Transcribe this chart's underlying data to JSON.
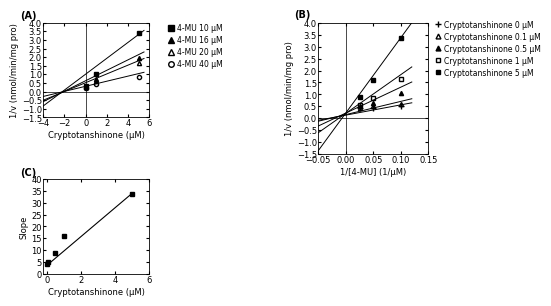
{
  "panel_A": {
    "title": "(A)",
    "xlabel": "Cryptotanshinone (μM)",
    "ylabel": "1/v (nmol/min/mg pro)",
    "xlim": [
      -4,
      6
    ],
    "ylim": [
      -1.5,
      4
    ],
    "xticks": [
      -4,
      -2,
      0,
      2,
      4,
      6
    ],
    "yticks": [
      -1.5,
      -1,
      -0.5,
      0,
      0.5,
      1,
      1.5,
      2,
      2.5,
      3,
      3.5,
      4
    ],
    "series": [
      {
        "label": "4-MU 10 μM",
        "marker": "s",
        "fillstyle": "full",
        "color": "black",
        "data_x": [
          0,
          1,
          5
        ],
        "data_y": [
          0.35,
          1.0,
          3.4
        ],
        "line_x": [
          -4,
          5.5
        ],
        "line_y": [
          -0.83,
          3.55
        ]
      },
      {
        "label": "4-MU 16 μM",
        "marker": "^",
        "fillstyle": "full",
        "color": "black",
        "data_x": [
          0,
          1,
          5
        ],
        "data_y": [
          0.28,
          0.75,
          1.95
        ],
        "line_x": [
          -4,
          5.5
        ],
        "line_y": [
          -0.58,
          2.3
        ]
      },
      {
        "label": "4-MU 20 μM",
        "marker": "^",
        "fillstyle": "none",
        "color": "black",
        "data_x": [
          0,
          1,
          5
        ],
        "data_y": [
          0.25,
          0.6,
          1.65
        ],
        "line_x": [
          -4,
          5.5
        ],
        "line_y": [
          -0.5,
          1.92
        ]
      },
      {
        "label": "4-MU 40 μM",
        "marker": "o",
        "fillstyle": "none",
        "color": "black",
        "data_x": [
          0,
          1,
          5
        ],
        "data_y": [
          0.22,
          0.42,
          0.87
        ],
        "line_x": [
          -4,
          5.5
        ],
        "line_y": [
          -0.28,
          1.12
        ]
      }
    ]
  },
  "panel_B": {
    "title": "(B)",
    "xlabel": "1/[4-MU] (1/μM)",
    "ylabel": "1/v (nmol/min/mg pro)",
    "xlim": [
      -0.05,
      0.15
    ],
    "ylim": [
      -1.5,
      4
    ],
    "xticks": [
      -0.05,
      0,
      0.05,
      0.1,
      0.15
    ],
    "yticks": [
      -1.5,
      -1,
      -0.5,
      0,
      0.5,
      1,
      1.5,
      2,
      2.5,
      3,
      3.5,
      4
    ],
    "series": [
      {
        "label": "Cryptotanshinone 0 μM",
        "marker": "+",
        "fillstyle": "full",
        "color": "black",
        "data_x": [
          0.025,
          0.05,
          0.1
        ],
        "data_y": [
          0.42,
          0.45,
          0.52
        ],
        "line_x": [
          -0.05,
          0.12
        ],
        "line_y": [
          -0.08,
          0.65
        ]
      },
      {
        "label": "Cryptotanshinone 0.1 μM",
        "marker": "^",
        "fillstyle": "none",
        "color": "black",
        "data_x": [
          0.025,
          0.05,
          0.1
        ],
        "data_y": [
          0.45,
          0.52,
          0.6
        ],
        "line_x": [
          -0.05,
          0.12
        ],
        "line_y": [
          -0.12,
          0.82
        ]
      },
      {
        "label": "Cryptotanshinone 0.5 μM",
        "marker": "^",
        "fillstyle": "full",
        "color": "black",
        "data_x": [
          0.025,
          0.05,
          0.1
        ],
        "data_y": [
          0.5,
          0.65,
          1.05
        ],
        "line_x": [
          -0.05,
          0.12
        ],
        "line_y": [
          -0.32,
          1.52
        ]
      },
      {
        "label": "Cryptotanshinone 1 μM",
        "marker": "s",
        "fillstyle": "none",
        "color": "black",
        "data_x": [
          0.025,
          0.05,
          0.1
        ],
        "data_y": [
          0.55,
          0.85,
          1.65
        ],
        "line_x": [
          -0.05,
          0.12
        ],
        "line_y": [
          -0.6,
          2.15
        ]
      },
      {
        "label": "Cryptotanshinone 5 μM",
        "marker": "s",
        "fillstyle": "full",
        "color": "black",
        "data_x": [
          0.025,
          0.05,
          0.1
        ],
        "data_y": [
          0.9,
          1.6,
          3.35
        ],
        "line_x": [
          -0.05,
          0.12
        ],
        "line_y": [
          -1.35,
          4.0
        ]
      }
    ]
  },
  "panel_C": {
    "title": "(C)",
    "xlabel": "Cryptotanshinone (μM)",
    "ylabel": "Slope",
    "xlim": [
      -0.2,
      6
    ],
    "ylim": [
      0,
      40
    ],
    "xticks": [
      0,
      2,
      4,
      6
    ],
    "yticks": [
      0,
      5,
      10,
      15,
      20,
      25,
      30,
      35,
      40
    ],
    "data_x": [
      0,
      0.1,
      0.5,
      1,
      5
    ],
    "data_y": [
      4.1,
      5.0,
      9.0,
      16.0,
      33.5
    ],
    "line_x": [
      0,
      5
    ],
    "line_y": [
      3.5,
      34.0
    ]
  },
  "figure_bg": "white",
  "font_size": 6
}
